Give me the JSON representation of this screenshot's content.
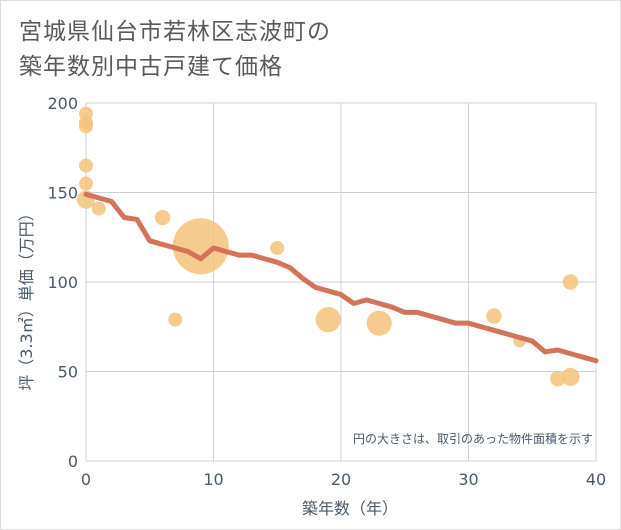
{
  "title": {
    "line1": "宮城県仙台市若林区志波町の",
    "line2": "築年数別中古戸建て価格"
  },
  "colors": {
    "trend_line": "#d4735a",
    "bubble": "#f5c37a",
    "grid": "#c8d3dd",
    "axis_text": "#4a5a6a"
  },
  "chart_data": {
    "type": "scatter",
    "xlabel": "築年数（年）",
    "ylabel": "坪（3.3㎡）単価（万円）",
    "xlim": [
      0,
      40
    ],
    "ylim": [
      0,
      200
    ],
    "x_ticks": [
      0,
      10,
      20,
      30,
      40
    ],
    "y_ticks": [
      0,
      50,
      100,
      150,
      200
    ],
    "grid": true,
    "note": "円の大きさは、取引のあった物件面積を示す",
    "bubbles": [
      {
        "x": 0,
        "y": 194,
        "size": 1
      },
      {
        "x": 0,
        "y": 189,
        "size": 1
      },
      {
        "x": 0,
        "y": 187,
        "size": 1
      },
      {
        "x": 0,
        "y": 165,
        "size": 1
      },
      {
        "x": 0,
        "y": 155,
        "size": 1
      },
      {
        "x": 0,
        "y": 146,
        "size": 1.3
      },
      {
        "x": 1,
        "y": 141,
        "size": 1
      },
      {
        "x": 6,
        "y": 136,
        "size": 1.1
      },
      {
        "x": 7,
        "y": 79,
        "size": 1
      },
      {
        "x": 9,
        "y": 120,
        "size": 4
      },
      {
        "x": 15,
        "y": 119,
        "size": 1
      },
      {
        "x": 19,
        "y": 79,
        "size": 1.8
      },
      {
        "x": 23,
        "y": 77,
        "size": 1.8
      },
      {
        "x": 32,
        "y": 81,
        "size": 1.1
      },
      {
        "x": 34,
        "y": 67,
        "size": 0.9
      },
      {
        "x": 37,
        "y": 46,
        "size": 1.1
      },
      {
        "x": 38,
        "y": 47,
        "size": 1.3
      },
      {
        "x": 38,
        "y": 100,
        "size": 1.1
      }
    ],
    "trend": {
      "x": [
        0,
        1,
        2,
        3,
        4,
        5,
        6,
        7,
        8,
        9,
        10,
        11,
        12,
        13,
        14,
        15,
        16,
        17,
        18,
        19,
        20,
        21,
        22,
        23,
        24,
        25,
        26,
        27,
        28,
        29,
        30,
        31,
        32,
        33,
        34,
        35,
        36,
        37,
        38,
        39,
        40
      ],
      "y": [
        149,
        147,
        145,
        136,
        135,
        123,
        121,
        119,
        117,
        113,
        119,
        117,
        115,
        115,
        113,
        111,
        108,
        102,
        97,
        95,
        93,
        88,
        90,
        88,
        86,
        83,
        83,
        81,
        79,
        77,
        77,
        75,
        73,
        71,
        69,
        67,
        61,
        62,
        60,
        58,
        56
      ]
    }
  }
}
